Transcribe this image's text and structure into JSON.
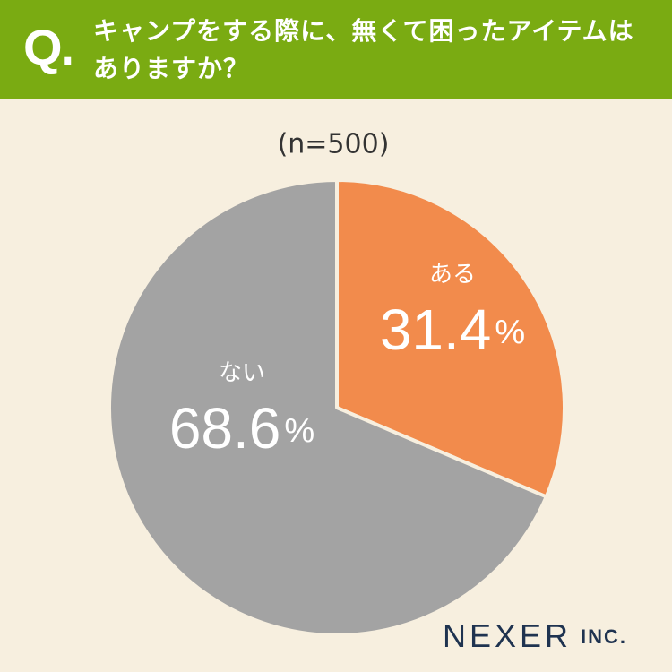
{
  "header": {
    "mark": "Q.",
    "title": "キャンプをする際に、無くて困ったアイテムはありますか？"
  },
  "chart_data": {
    "type": "pie",
    "subtitle": "(n=500)",
    "categories": [
      "ある",
      "ない"
    ],
    "values": [
      31.4,
      68.6
    ],
    "value_labels": [
      "31.4%",
      "68.6%"
    ],
    "colors": [
      "#f28b4c",
      "#a3a3a3"
    ]
  },
  "footer": {
    "brand": "NEXER",
    "brand_suffix": "INC."
  }
}
